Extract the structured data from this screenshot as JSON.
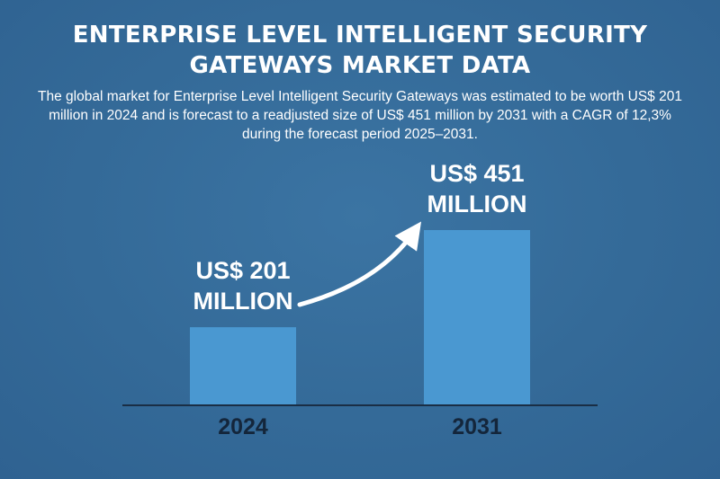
{
  "header": {
    "title": "ENTERPRISE LEVEL INTELLIGENT SECURITY GATEWAYS MARKET DATA",
    "description": "The global market for Enterprise Level Intelligent Security Gateways was estimated to be worth US$ 201 million in 2024 and is forecast to a readjusted size of US$ 451 million by 2031 with a CAGR of 12,3% during the forecast period 2025–2031."
  },
  "chart_data": {
    "type": "bar",
    "categories": [
      "2024",
      "2031"
    ],
    "values": [
      201,
      451
    ],
    "data_labels": [
      [
        "US$ 201",
        "MILLION"
      ],
      [
        "US$ 451",
        "MILLION"
      ]
    ],
    "title": "",
    "xlabel": "",
    "ylabel": "",
    "grid": false,
    "colors": {
      "bar": "#4a98d1",
      "axis": "#1a2e45",
      "tick_label": "#14263b",
      "data_label": "#ffffff",
      "arrow": "#ffffff"
    }
  }
}
